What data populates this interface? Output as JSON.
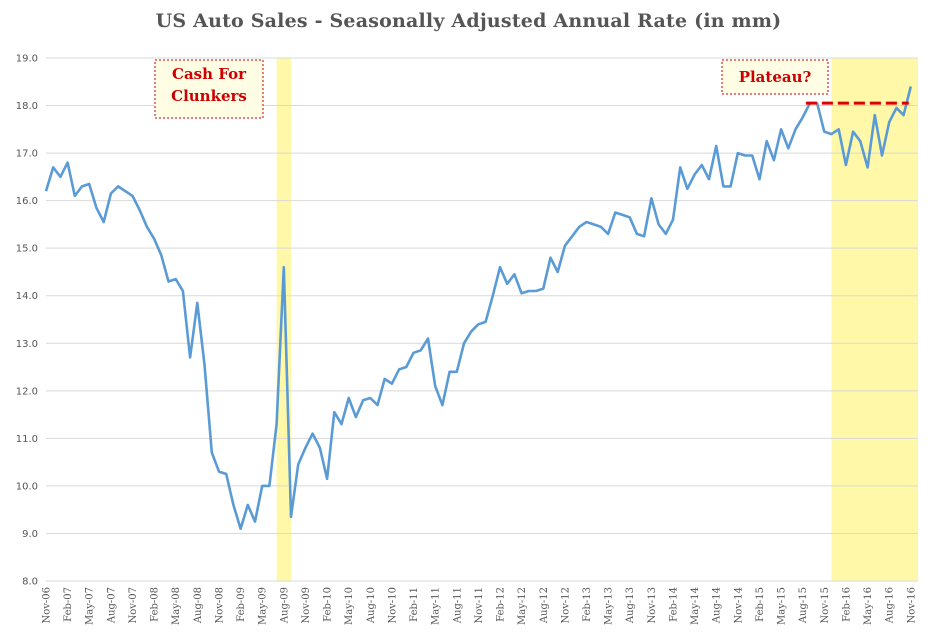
{
  "chart_data": {
    "type": "line",
    "title": "US Auto Sales - Seasonally Adjusted Annual Rate (in mm)",
    "xlabel": "",
    "ylabel": "",
    "ylim": [
      8.0,
      19.0
    ],
    "yticks": [
      8.0,
      9.0,
      10.0,
      11.0,
      12.0,
      13.0,
      14.0,
      15.0,
      16.0,
      17.0,
      18.0,
      19.0
    ],
    "grid": true,
    "legend": "none",
    "x_tick_labels": [
      "Nov-06",
      "Feb-07",
      "May-07",
      "Aug-07",
      "Nov-07",
      "Feb-08",
      "May-08",
      "Aug-08",
      "Nov-08",
      "Feb-09",
      "May-09",
      "Aug-09",
      "Nov-09",
      "Feb-10",
      "May-10",
      "Aug-10",
      "Nov-10",
      "Feb-11",
      "May-11",
      "Aug-11",
      "Nov-11",
      "Feb-12",
      "May-12",
      "Aug-12",
      "Nov-12",
      "Feb-13",
      "May-13",
      "Aug-13",
      "Nov-13",
      "Feb-14",
      "May-14",
      "Aug-14",
      "Nov-14",
      "Feb-15",
      "May-15",
      "Aug-15",
      "Nov-15",
      "Feb-16",
      "May-16",
      "Aug-16",
      "Nov-16"
    ],
    "x_start": "Nov-06",
    "x_end": "Dec-16",
    "series": [
      {
        "color": "#5b9bd5",
        "values": [
          16.2,
          16.7,
          16.5,
          16.8,
          16.1,
          16.3,
          16.35,
          15.85,
          15.55,
          16.15,
          16.3,
          16.2,
          16.1,
          15.8,
          15.45,
          15.2,
          14.85,
          14.3,
          14.35,
          14.1,
          12.7,
          13.85,
          12.55,
          10.7,
          10.3,
          10.25,
          9.6,
          9.1,
          9.6,
          9.25,
          10.0,
          10.0,
          11.3,
          14.6,
          9.35,
          10.45,
          10.8,
          11.1,
          10.8,
          10.15,
          11.55,
          11.3,
          11.85,
          11.45,
          11.8,
          11.85,
          11.7,
          12.25,
          12.15,
          12.45,
          12.5,
          12.8,
          12.85,
          13.1,
          12.1,
          11.7,
          12.4,
          12.4,
          13.0,
          13.25,
          13.4,
          13.45,
          14.0,
          14.6,
          14.25,
          14.45,
          14.05,
          14.1,
          14.1,
          14.15,
          14.8,
          14.5,
          15.05,
          15.25,
          15.45,
          15.55,
          15.5,
          15.45,
          15.3,
          15.75,
          15.7,
          15.65,
          15.3,
          15.25,
          16.05,
          15.5,
          15.3,
          15.6,
          16.7,
          16.25,
          16.55,
          16.75,
          16.45,
          17.15,
          16.3,
          16.3,
          17.0,
          16.95,
          16.95,
          16.45,
          17.25,
          16.85,
          17.5,
          17.1,
          17.5,
          17.75,
          18.05,
          18.05,
          17.45,
          17.4,
          17.5,
          16.75,
          17.45,
          17.25,
          16.7,
          17.8,
          16.95,
          17.65,
          17.95,
          17.8,
          18.4
        ]
      }
    ],
    "highlights": [
      {
        "from": "Jul-09",
        "to": "Sep-09",
        "color": "#fff8a8"
      },
      {
        "from": "Dec-15",
        "to": "Dec-16",
        "color": "#fff8a8"
      }
    ],
    "plateau_line": {
      "y": 18.05,
      "color": "#e00000"
    },
    "annotations": [
      {
        "lines": [
          "Cash For",
          "Clunkers"
        ],
        "color": "#cc0000"
      },
      {
        "lines": [
          "Plateau?"
        ],
        "color": "#cc0000"
      }
    ]
  }
}
